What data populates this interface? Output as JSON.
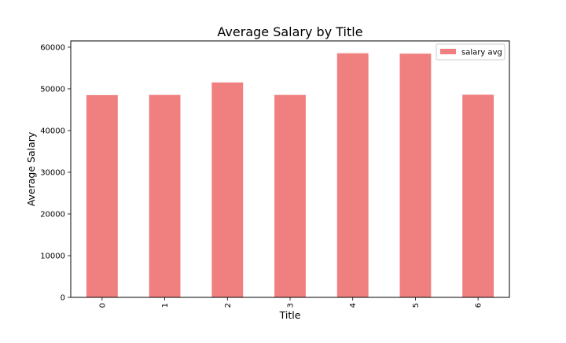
{
  "chart_data": {
    "type": "bar",
    "title": "Average Salary by Title",
    "xlabel": "Title",
    "ylabel": "Average Salary",
    "categories": [
      "0",
      "1",
      "2",
      "3",
      "4",
      "5",
      "6"
    ],
    "series": [
      {
        "name": "salary avg",
        "values": [
          48500,
          48550,
          51550,
          48550,
          58550,
          58450,
          48600
        ],
        "color": "#f08080"
      }
    ],
    "ylim": [
      0,
      61500
    ],
    "yticks": [
      0,
      10000,
      20000,
      30000,
      40000,
      50000,
      60000
    ],
    "grid": false,
    "legend_position": "top-right",
    "x_tick_rotation": "vertical"
  }
}
